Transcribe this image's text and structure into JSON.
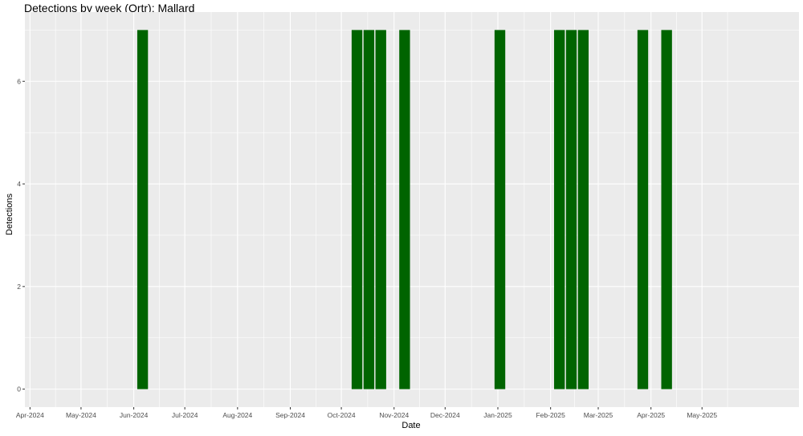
{
  "chart_data": {
    "type": "bar",
    "title": "Detections by week (Qrtr): Mallard",
    "xlabel": "Date",
    "ylabel": "Detections",
    "x_axis_type": "date",
    "xlim": [
      "2024-03-29",
      "2025-06-27"
    ],
    "ylim": [
      -0.35,
      7.35
    ],
    "grid": true,
    "panel_background": "#ebebeb",
    "bar_color": "#006400",
    "y_ticks": [
      0,
      2,
      4,
      6
    ],
    "x_ticks": [
      {
        "date": "2024-04-01",
        "label": "Apr-2024"
      },
      {
        "date": "2024-05-01",
        "label": "May-2024"
      },
      {
        "date": "2024-06-01",
        "label": "Jun-2024"
      },
      {
        "date": "2024-07-01",
        "label": "Jul-2024"
      },
      {
        "date": "2024-08-01",
        "label": "Aug-2024"
      },
      {
        "date": "2024-09-01",
        "label": "Sep-2024"
      },
      {
        "date": "2024-10-01",
        "label": "Oct-2024"
      },
      {
        "date": "2024-11-01",
        "label": "Nov-2024"
      },
      {
        "date": "2024-12-01",
        "label": "Dec-2024"
      },
      {
        "date": "2025-01-01",
        "label": "Jan-2025"
      },
      {
        "date": "2025-02-01",
        "label": "Feb-2025"
      },
      {
        "date": "2025-03-01",
        "label": "Mar-2025"
      },
      {
        "date": "2025-04-01",
        "label": "Apr-2025"
      },
      {
        "date": "2025-05-01",
        "label": "May-2025"
      }
    ],
    "bars": [
      {
        "week": "2024-06-03",
        "value": 7
      },
      {
        "week": "2024-10-07",
        "value": 7
      },
      {
        "week": "2024-10-14",
        "value": 7
      },
      {
        "week": "2024-10-21",
        "value": 7
      },
      {
        "week": "2024-11-04",
        "value": 7
      },
      {
        "week": "2024-12-30",
        "value": 7
      },
      {
        "week": "2025-02-03",
        "value": 7
      },
      {
        "week": "2025-02-10",
        "value": 7
      },
      {
        "week": "2025-02-17",
        "value": 7
      },
      {
        "week": "2025-03-24",
        "value": 7
      },
      {
        "week": "2025-04-07",
        "value": 7
      }
    ]
  }
}
